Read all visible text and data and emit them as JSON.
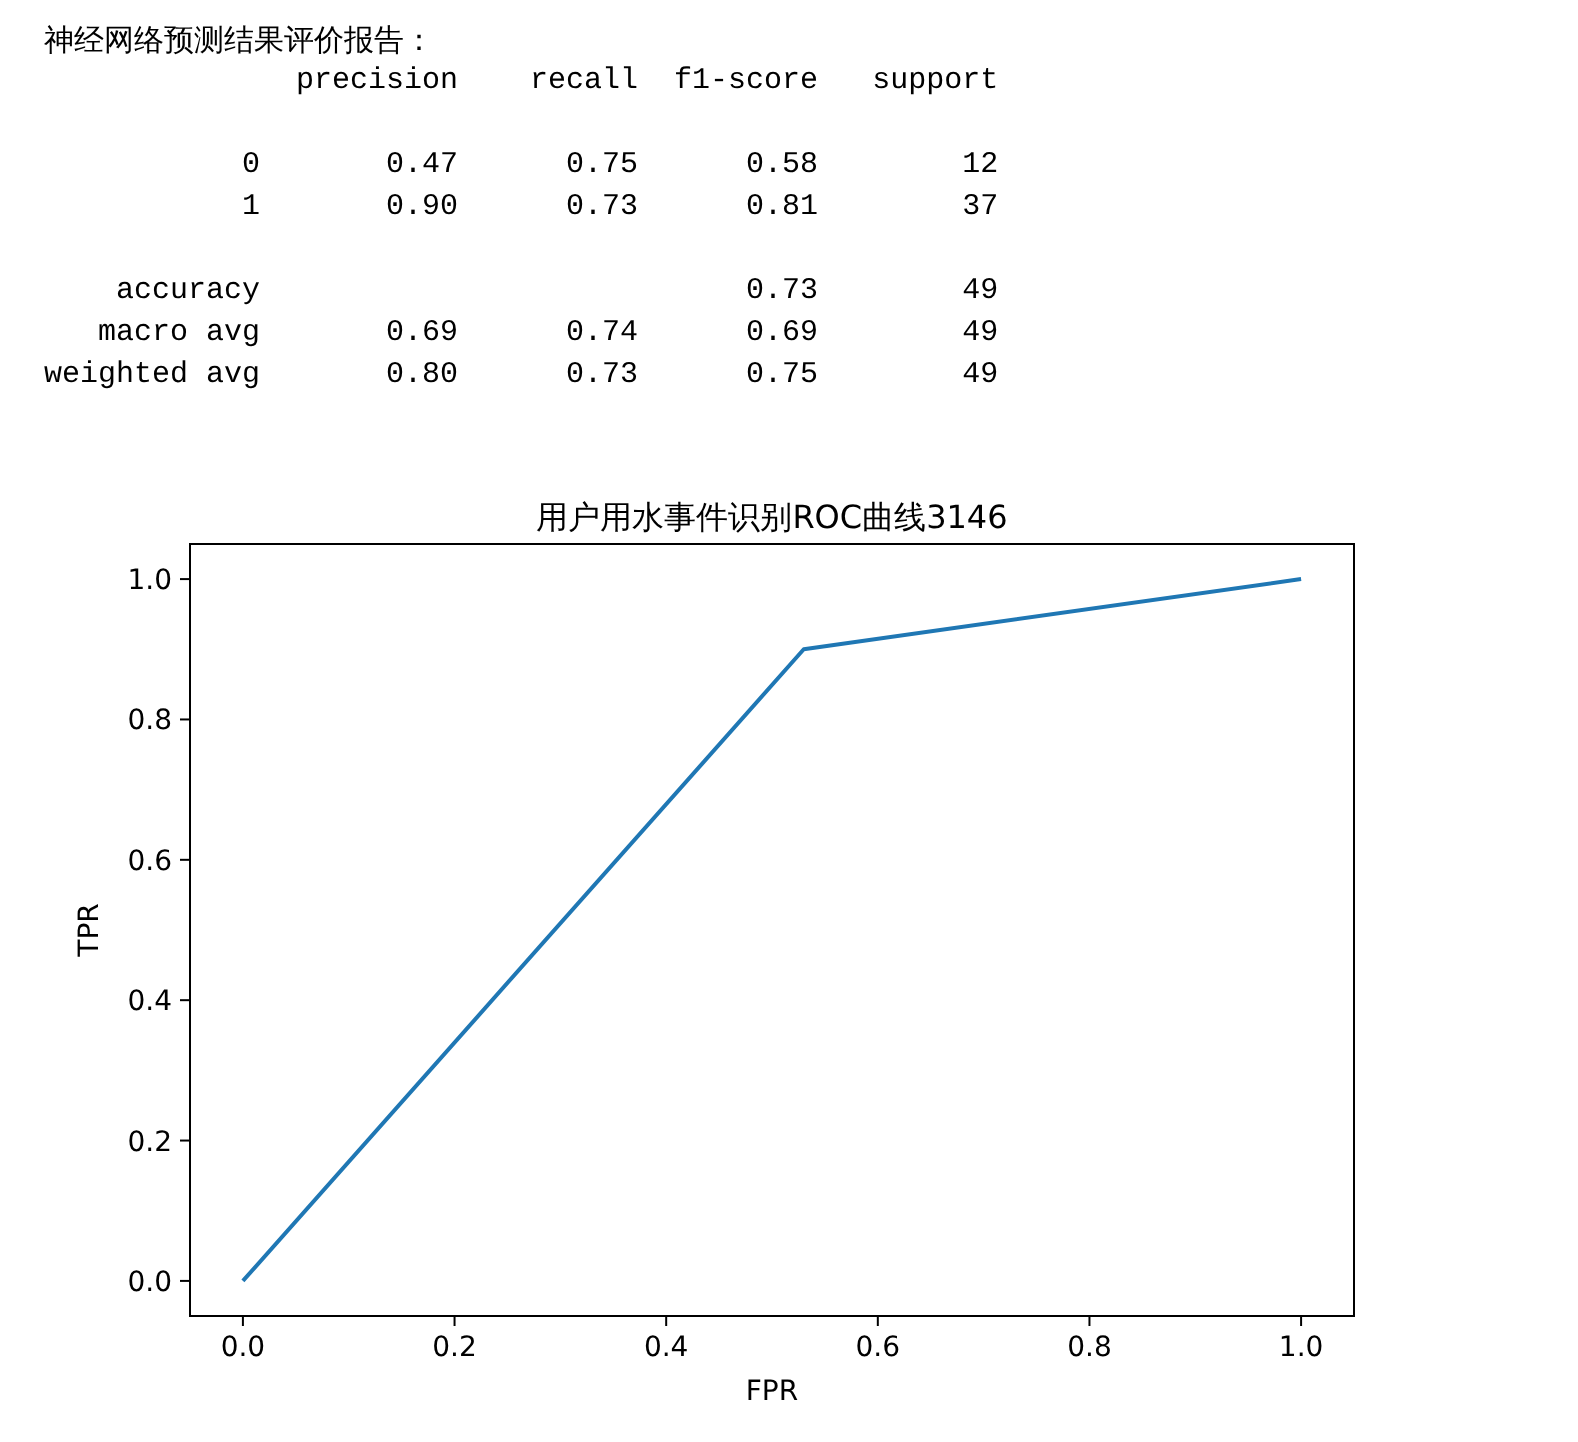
{
  "chart_data": [
    {
      "type": "other",
      "title": "神经网络预测结果评价报告：",
      "annotations": [
        "              precision    recall  f1-score   support",
        "           0       0.47      0.75      0.58        12",
        "           1       0.90      0.73      0.81        37",
        "    accuracy                           0.73        49",
        "   macro avg       0.69      0.74      0.69        49",
        "weighted avg       0.80      0.73      0.75        49"
      ]
    },
    {
      "type": "line",
      "title": "用户用水事件识别ROC曲线3146",
      "xlabel": "FPR",
      "ylabel": "TPR",
      "x": [
        0,
        0.53,
        1
      ],
      "series": [
        {
          "color": "#1f77b4",
          "values": [
            0,
            0.9,
            1
          ]
        }
      ],
      "xlim": [
        -0.05,
        1.05
      ],
      "ylim": [
        -0.05,
        1.05
      ],
      "xticks": [
        {
          "value": 0,
          "label": "0.0"
        },
        0.2,
        0.4,
        0.6,
        0.8,
        {
          "value": 1,
          "label": "1.0"
        }
      ],
      "yticks": [
        {
          "value": 0,
          "label": "0.0"
        },
        0.2,
        0.4,
        0.6,
        0.8,
        {
          "value": 1,
          "label": "1.0"
        }
      ],
      "grid": false
    }
  ]
}
